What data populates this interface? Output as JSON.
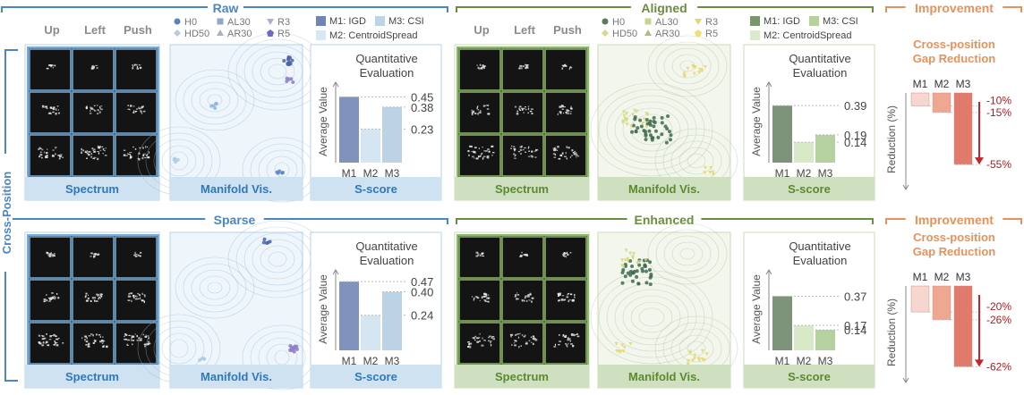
{
  "side_label": "Cross-Position",
  "columns": [
    "Up",
    "Left",
    "Push"
  ],
  "panel_labels": {
    "spectrum": "Spectrum",
    "manifold": "Manifold Vis.",
    "sscore": "S-score"
  },
  "quant_title": [
    "Quantitative",
    "Evaluation"
  ],
  "ylabel": "Average Value",
  "improvement": {
    "header": "Improvement",
    "subtitle": [
      "Cross-position",
      "Gap Reduction"
    ],
    "ylabel": "Reduction (%)"
  },
  "legend_manifold": [
    {
      "label": "H0",
      "marker": "circle"
    },
    {
      "label": "AL30",
      "marker": "square"
    },
    {
      "label": "R3",
      "marker": "triangle-down"
    },
    {
      "label": "HD50",
      "marker": "diamond"
    },
    {
      "label": "AR30",
      "marker": "triangle-up"
    },
    {
      "label": "R5",
      "marker": "pentagon"
    }
  ],
  "legend_metrics": [
    "M1: IGD",
    "M3: CSI",
    "M2: CentroidSpread"
  ],
  "colors": {
    "blue_header": "#4a86c5",
    "green_header": "#6a8e3f",
    "orange_header": "#e8925a",
    "blue_band": "#cfe2f1",
    "green_band": "#cfe0c0",
    "red_arrow": "#c0272d",
    "red_text": "#b01c22"
  },
  "chart_data": [
    {
      "type": "bar",
      "title": "Raw",
      "categories": [
        "M1",
        "M2",
        "M3"
      ],
      "values": [
        0.45,
        0.23,
        0.38
      ],
      "ticks": [
        "0.45",
        "0.38",
        "0.23"
      ],
      "ylim": [
        0,
        0.55
      ],
      "xlabel": "",
      "ylabel": "Average Value"
    },
    {
      "type": "bar",
      "title": "Aligned",
      "categories": [
        "M1",
        "M2",
        "M3"
      ],
      "values": [
        0.39,
        0.14,
        0.19
      ],
      "ticks": [
        "0.39",
        "0.19",
        "0.14"
      ],
      "ylim": [
        0,
        0.55
      ],
      "xlabel": "",
      "ylabel": "Average Value"
    },
    {
      "type": "bar",
      "title": "Improvement (top)",
      "categories": [
        "M1",
        "M2",
        "M3"
      ],
      "values": [
        -10,
        -15,
        -55
      ],
      "ticks": [
        "-10%",
        "-15%",
        "-55%"
      ],
      "ylim": [
        -70,
        0
      ],
      "xlabel": "",
      "ylabel": "Reduction (%)"
    },
    {
      "type": "bar",
      "title": "Sparse",
      "categories": [
        "M1",
        "M2",
        "M3"
      ],
      "values": [
        0.47,
        0.24,
        0.4
      ],
      "ticks": [
        "0.47",
        "0.40",
        "0.24"
      ],
      "ylim": [
        0,
        0.55
      ],
      "xlabel": "",
      "ylabel": "Average Value"
    },
    {
      "type": "bar",
      "title": "Enhanced",
      "categories": [
        "M1",
        "M2",
        "M3"
      ],
      "values": [
        0.37,
        0.17,
        0.14
      ],
      "ticks": [
        "0.37",
        "0.17",
        "0.14"
      ],
      "ylim": [
        0,
        0.55
      ],
      "xlabel": "",
      "ylabel": "Average Value"
    },
    {
      "type": "bar",
      "title": "Improvement (bottom)",
      "categories": [
        "M1",
        "M2",
        "M3"
      ],
      "values": [
        -20,
        -26,
        -62
      ],
      "ticks": [
        "-20%",
        "-26%",
        "-62%"
      ],
      "ylim": [
        -70,
        0
      ],
      "xlabel": "",
      "ylabel": "Reduction (%)"
    }
  ]
}
